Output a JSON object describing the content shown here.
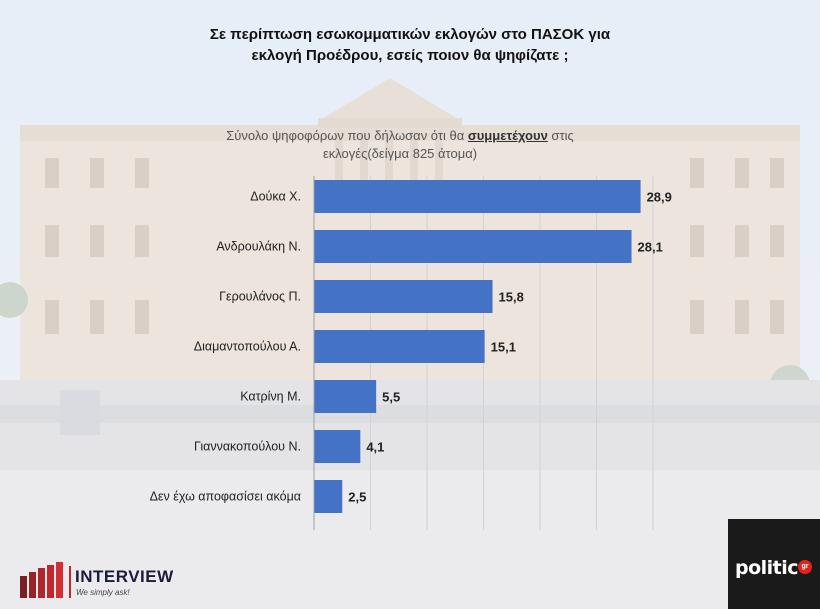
{
  "title_line1": "Σε περίπτωση εσωκομματικών εκλογών στο ΠΑΣΟΚ για",
  "title_line2": "εκλογή Προέδρου, εσείς ποιον θα ψηφίζατε ;",
  "subtitle_pre": "Σύνολο ψηφοφόρων που δήλωσαν ότι θα ",
  "subtitle_em": "συμμετέχουν",
  "subtitle_post": " στις",
  "subtitle_line2": "εκλογές(δείγμα 825 άτομα)",
  "brand": {
    "name": "INTERVIEW",
    "tagline": "We simply ask!",
    "partner": "politic",
    "partner_badge": "gr",
    "accent": "#c0282d"
  },
  "chart_data": {
    "type": "bar",
    "orientation": "horizontal",
    "bar_color": "#4472c4",
    "categories": [
      "Δούκα Χ.",
      "Ανδρουλάκη Ν.",
      "Γερουλάνος Π.",
      "Διαμαντοπούλου Α.",
      "Κατρίνη Μ.",
      "Γιαννακοπούλου Ν.",
      "Δεν έχω αποφασίσει ακόμα"
    ],
    "values": [
      28.9,
      28.1,
      15.8,
      15.1,
      5.5,
      4.1,
      2.5
    ],
    "value_labels": [
      "28,9",
      "28,1",
      "15,8",
      "15,1",
      "5,5",
      "4,1",
      "2,5"
    ],
    "xlim": [
      0,
      30
    ],
    "grid": true
  }
}
